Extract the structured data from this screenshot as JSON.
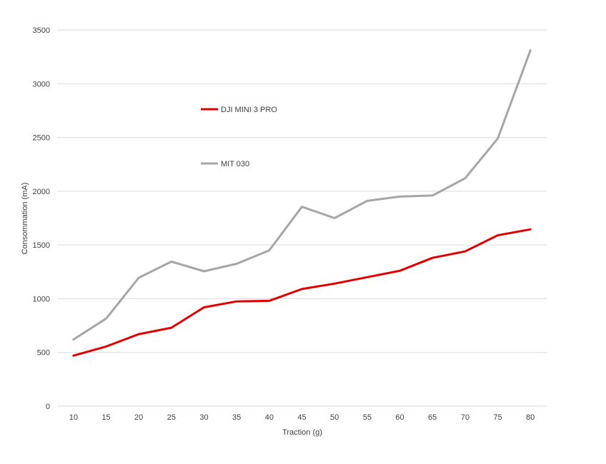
{
  "chart_data": {
    "type": "line",
    "title": "",
    "xlabel": "Traction (g)",
    "ylabel": "Consommation (mA)",
    "categories": [
      "10",
      "15",
      "20",
      "25",
      "30",
      "35",
      "40",
      "45",
      "50",
      "55",
      "60",
      "65",
      "70",
      "75",
      "80"
    ],
    "ylim": [
      0,
      3500
    ],
    "yticks": [
      "0",
      "500",
      "1000",
      "1500",
      "2000",
      "2500",
      "3000",
      "3500"
    ],
    "grid": true,
    "legend": "inside-upper-left",
    "series": [
      {
        "name": "DJI MINI 3 PRO",
        "color": "#e00000",
        "values": [
          470,
          555,
          670,
          730,
          920,
          975,
          980,
          1090,
          1140,
          1200,
          1260,
          1380,
          1440,
          1590,
          1645
        ]
      },
      {
        "name": "MIT 030",
        "color": "#a6a6a6",
        "values": [
          620,
          815,
          1195,
          1345,
          1255,
          1325,
          1450,
          1855,
          1750,
          1910,
          1950,
          1960,
          2120,
          2490,
          3310
        ]
      }
    ]
  }
}
